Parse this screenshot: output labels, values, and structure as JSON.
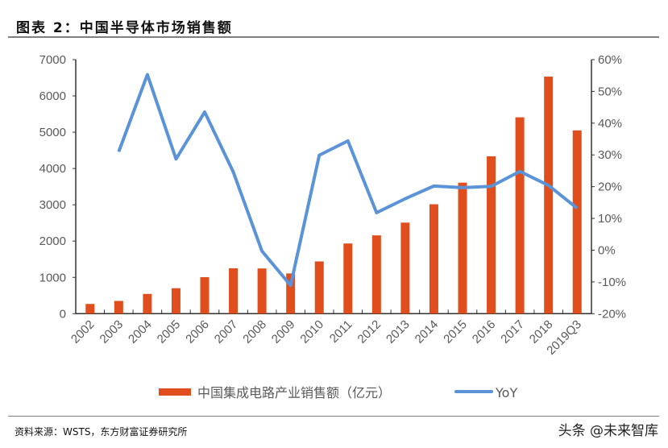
{
  "title": "图表 2：中国半导体市场销售额",
  "source": "资料来源：WSTS，东方财富证券研究所",
  "watermark": "头条 @未来智库",
  "chart_data": {
    "type": "bar+line",
    "categories": [
      "2002",
      "2003",
      "2004",
      "2005",
      "2006",
      "2007",
      "2008",
      "2009",
      "2010",
      "2011",
      "2012",
      "2013",
      "2014",
      "2015",
      "2016",
      "2017",
      "2018",
      "2019Q3"
    ],
    "series": [
      {
        "name": "中国集成电路产业销售额（亿元）",
        "type": "bar",
        "axis": "left",
        "color": "#E04E1E",
        "values": [
          268,
          351,
          545,
          702,
          1007,
          1251,
          1246,
          1109,
          1440,
          1934,
          2158,
          2509,
          3015,
          3610,
          4336,
          5411,
          6532,
          5050
        ]
      },
      {
        "name": "YoY",
        "type": "line",
        "axis": "right",
        "color": "#5B93D8",
        "values": [
          null,
          31.0,
          55.3,
          28.7,
          43.5,
          24.6,
          -0.3,
          -11.1,
          29.9,
          34.4,
          11.8,
          16.2,
          20.2,
          19.7,
          20.1,
          24.8,
          20.4,
          13.2
        ]
      }
    ],
    "yleft": {
      "lim": [
        0,
        7000
      ],
      "ticks": [
        "0",
        "1000",
        "2000",
        "3000",
        "4000",
        "5000",
        "6000",
        "7000"
      ]
    },
    "yright": {
      "lim": [
        -20,
        60
      ],
      "ticks": [
        "-20%",
        "-10%",
        "0%",
        "10%",
        "20%",
        "30%",
        "40%",
        "50%",
        "60%"
      ]
    },
    "grid": false,
    "legend": "bottom"
  }
}
